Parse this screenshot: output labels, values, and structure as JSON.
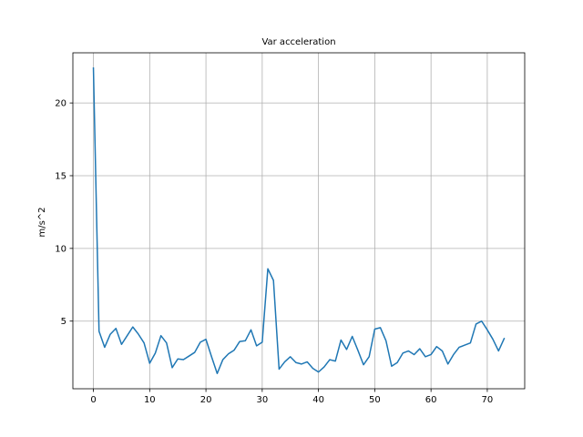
{
  "chart_data": {
    "type": "line",
    "title": "Var acceleration",
    "xlabel": "",
    "ylabel": "m/s^2",
    "xlim": [
      -3.65,
      76.65
    ],
    "ylim": [
      0.35,
      23.45
    ],
    "grid": true,
    "xticks": [
      0,
      10,
      20,
      30,
      40,
      50,
      60,
      70
    ],
    "yticks": [
      5,
      10,
      15,
      20
    ],
    "series_color": "#1f77b4",
    "series": [
      {
        "x": [
          0,
          1,
          2,
          3,
          4,
          5,
          6,
          7,
          8,
          9,
          10,
          11,
          12,
          13,
          14,
          15,
          16,
          17,
          18,
          19,
          20,
          21,
          22,
          23,
          24,
          25,
          26,
          27,
          28,
          29,
          30,
          31,
          32,
          33,
          34,
          35,
          36,
          37,
          38,
          39,
          40,
          41,
          42,
          43,
          44,
          45,
          46,
          47,
          48,
          49,
          50,
          51,
          52,
          53,
          54,
          55,
          56,
          57,
          58,
          59,
          60,
          61,
          62,
          63,
          64,
          65,
          66,
          67,
          68,
          69,
          70,
          71,
          72,
          73
        ],
        "values": [
          22.4,
          4.3,
          3.2,
          4.1,
          4.5,
          3.4,
          4.0,
          4.6,
          4.1,
          3.5,
          2.1,
          2.8,
          4.0,
          3.5,
          1.8,
          2.4,
          2.35,
          2.6,
          2.85,
          3.55,
          3.75,
          2.55,
          1.4,
          2.35,
          2.75,
          3.0,
          3.6,
          3.65,
          4.4,
          3.3,
          3.55,
          8.6,
          7.8,
          1.7,
          2.2,
          2.55,
          2.15,
          2.05,
          2.2,
          1.75,
          1.5,
          1.85,
          2.35,
          2.25,
          3.7,
          3.05,
          3.95,
          3.0,
          2.0,
          2.55,
          4.45,
          4.55,
          3.65,
          1.9,
          2.15,
          2.8,
          2.95,
          2.7,
          3.1,
          2.55,
          2.7,
          3.25,
          2.95,
          2.05,
          2.7,
          3.2,
          3.35,
          3.5,
          4.8,
          5.0,
          4.4,
          3.75,
          2.95,
          3.8
        ]
      }
    ]
  }
}
